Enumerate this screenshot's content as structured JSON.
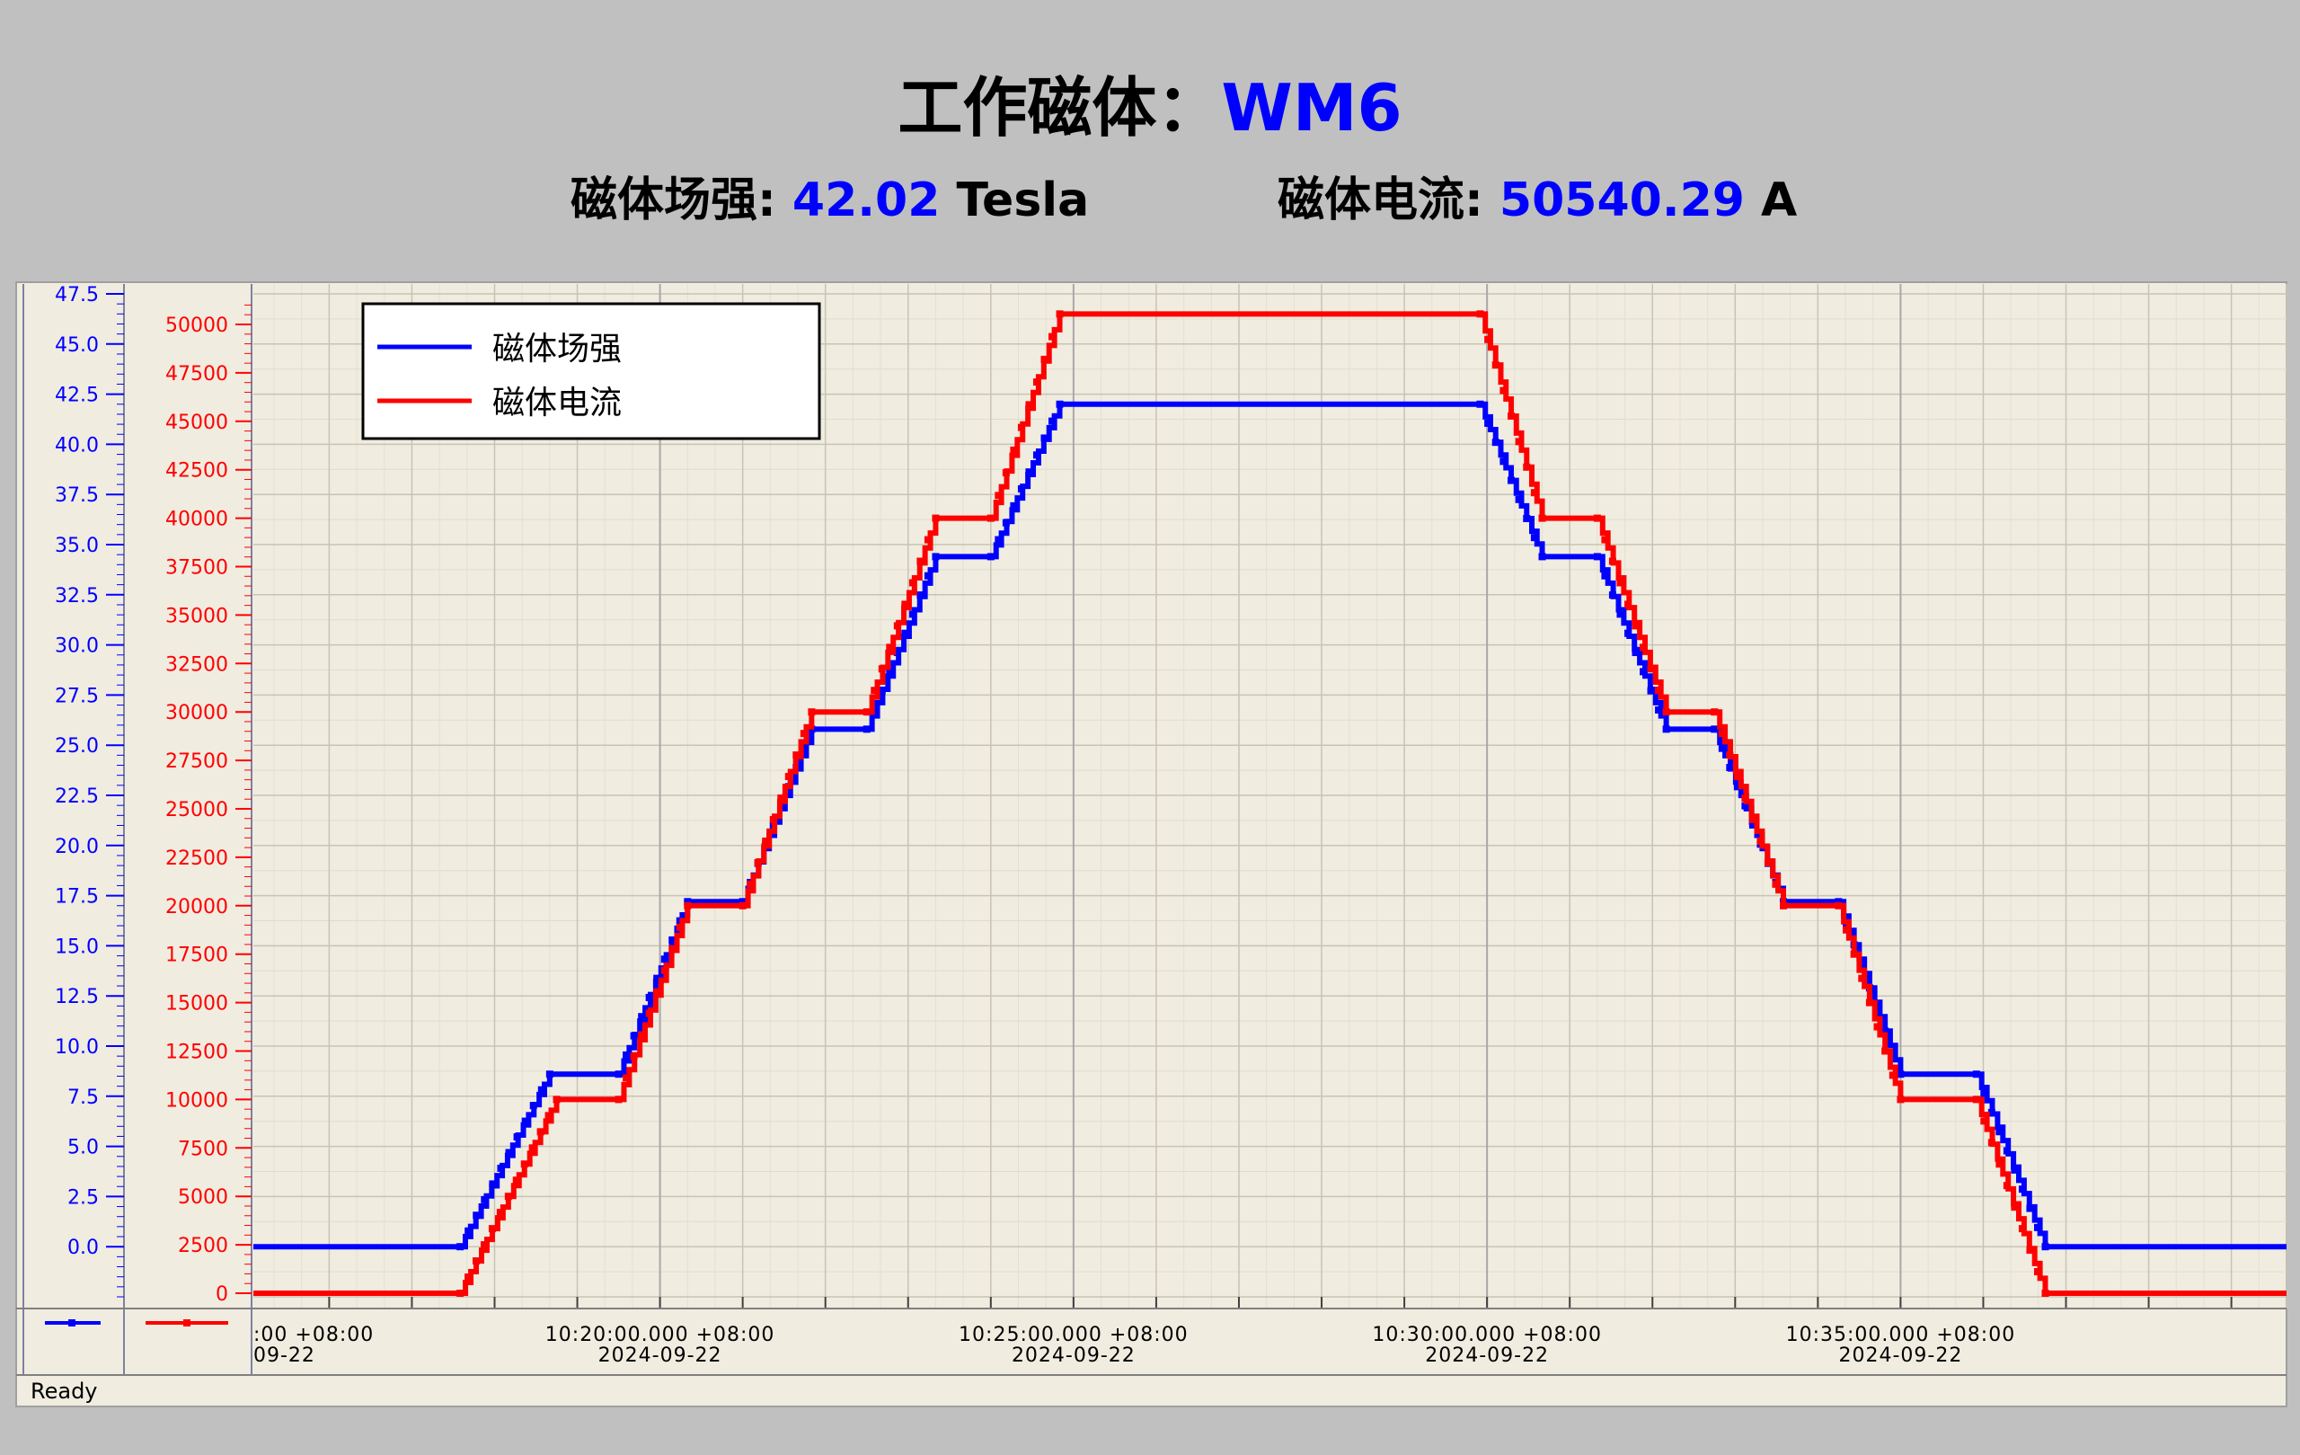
{
  "header": {
    "title_prefix": "工作磁体：",
    "magnet_name": "WM6",
    "field_label": "磁体场强: ",
    "field_value": "42.02",
    "field_unit": " Tesla",
    "current_label": "磁体电流: ",
    "current_value": "50540.29",
    "current_unit": " A"
  },
  "status_bar": {
    "text": "Ready"
  },
  "chart_data": {
    "type": "line",
    "title": "",
    "grid": true,
    "legend_placement": "top-left",
    "colors": {
      "field": "#0000ff",
      "current": "#ff0000"
    },
    "y_left": {
      "ylim": [
        -2.5,
        47.5
      ],
      "ticks": [
        "0.0",
        "2.5",
        "5.0",
        "7.5",
        "10.0",
        "12.5",
        "15.0",
        "17.5",
        "20.0",
        "22.5",
        "25.0",
        "27.5",
        "30.0",
        "32.5",
        "35.0",
        "37.5",
        "40.0",
        "42.5",
        "45.0",
        "47.5"
      ]
    },
    "y_right": {
      "ylim": [
        0,
        51000
      ],
      "ticks": [
        "0",
        "2500",
        "5000",
        "7500",
        "10000",
        "12500",
        "15000",
        "17500",
        "20000",
        "22500",
        "25000",
        "27500",
        "30000",
        "32500",
        "35000",
        "37500",
        "40000",
        "42500",
        "45000",
        "47500",
        "50000"
      ]
    },
    "x_axis": {
      "xlim": [
        "10:15:05",
        "10:39:40"
      ],
      "tick_labels": [
        {
          "time": "10:15:00",
          "line1": ":00 +08:00",
          "line2": "09-22"
        },
        {
          "time": "10:20:00",
          "line1": "10:20:00.000 +08:00",
          "line2": "2024-09-22"
        },
        {
          "time": "10:25:00",
          "line1": "10:25:00.000 +08:00",
          "line2": "2024-09-22"
        },
        {
          "time": "10:30:00",
          "line1": "10:30:00.000 +08:00",
          "line2": "2024-09-22"
        },
        {
          "time": "10:35:00",
          "line1": "10:35:00.000 +08:00",
          "line2": "2024-09-22"
        }
      ]
    },
    "series": [
      {
        "name": "磁体场强",
        "axis": "left",
        "color": "#0000ff",
        "points": [
          [
            "10:15:05",
            0.0
          ],
          [
            "10:17:35",
            0.0
          ],
          [
            "10:18:40",
            8.6
          ],
          [
            "10:19:30",
            8.6
          ],
          [
            "10:20:20",
            17.2
          ],
          [
            "10:21:00",
            17.2
          ],
          [
            "10:21:50",
            25.8
          ],
          [
            "10:22:30",
            25.8
          ],
          [
            "10:23:20",
            34.4
          ],
          [
            "10:24:00",
            34.4
          ],
          [
            "10:24:50",
            42.0
          ],
          [
            "10:29:55",
            42.0
          ],
          [
            "10:30:40",
            34.4
          ],
          [
            "10:31:20",
            34.4
          ],
          [
            "10:32:10",
            25.8
          ],
          [
            "10:32:45",
            25.8
          ],
          [
            "10:33:35",
            17.2
          ],
          [
            "10:34:15",
            17.2
          ],
          [
            "10:35:00",
            8.6
          ],
          [
            "10:35:55",
            8.6
          ],
          [
            "10:36:45",
            0.0
          ],
          [
            "10:39:40",
            0.0
          ]
        ]
      },
      {
        "name": "磁体电流",
        "axis": "right",
        "color": "#ff0000",
        "points": [
          [
            "10:15:05",
            0
          ],
          [
            "10:17:35",
            0
          ],
          [
            "10:18:45",
            10000
          ],
          [
            "10:19:30",
            10000
          ],
          [
            "10:20:20",
            20000
          ],
          [
            "10:21:00",
            20000
          ],
          [
            "10:21:50",
            30000
          ],
          [
            "10:22:30",
            30000
          ],
          [
            "10:23:20",
            40000
          ],
          [
            "10:24:00",
            40000
          ],
          [
            "10:24:50",
            50540
          ],
          [
            "10:29:55",
            50540
          ],
          [
            "10:30:40",
            40000
          ],
          [
            "10:31:20",
            40000
          ],
          [
            "10:32:10",
            30000
          ],
          [
            "10:32:45",
            30000
          ],
          [
            "10:33:35",
            20000
          ],
          [
            "10:34:15",
            20000
          ],
          [
            "10:35:00",
            10000
          ],
          [
            "10:35:55",
            10000
          ],
          [
            "10:36:45",
            0
          ],
          [
            "10:39:40",
            0
          ]
        ]
      }
    ]
  }
}
